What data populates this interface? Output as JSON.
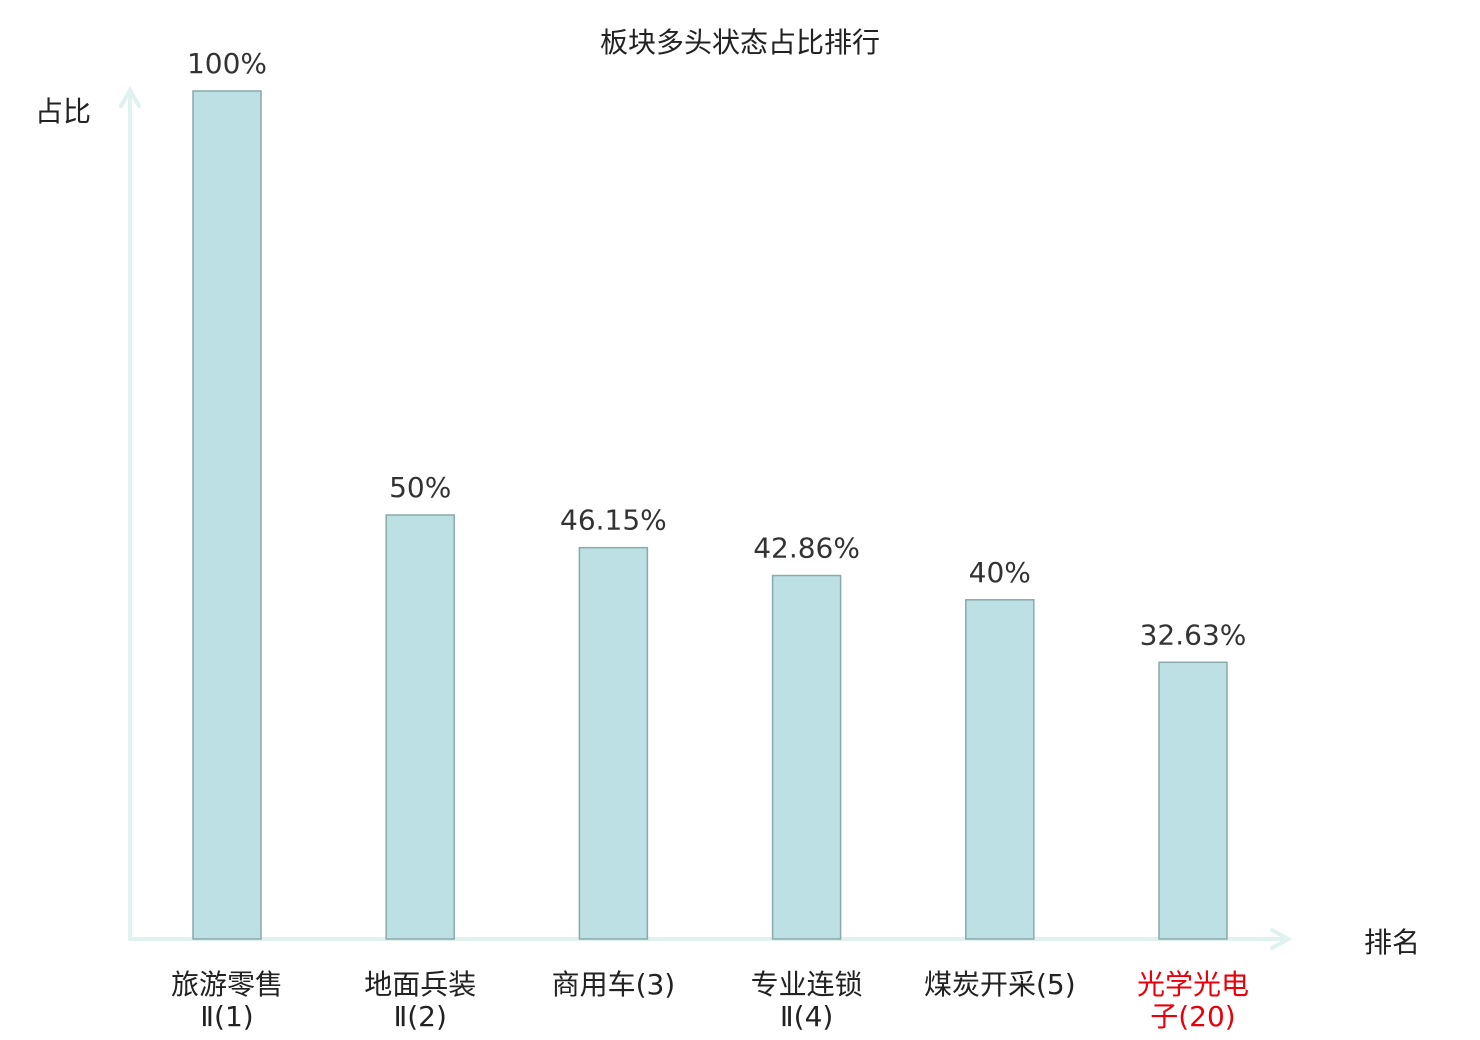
{
  "chart_data": {
    "type": "bar",
    "title": "板块多头状态占比排行",
    "xlabel": "排名",
    "ylabel": "占比",
    "ylim": [
      0,
      100
    ],
    "grid": false,
    "categories": [
      {
        "lines": [
          "旅游零售",
          "Ⅱ(1)"
        ],
        "highlight": false
      },
      {
        "lines": [
          "地面兵装",
          "Ⅱ(2)"
        ],
        "highlight": false
      },
      {
        "lines": [
          "商用车(3)"
        ],
        "highlight": false
      },
      {
        "lines": [
          "专业连锁",
          "Ⅱ(4)"
        ],
        "highlight": false
      },
      {
        "lines": [
          "煤炭开采(5)"
        ],
        "highlight": false
      },
      {
        "lines": [
          "光学光电",
          "子(20)"
        ],
        "highlight": true
      }
    ],
    "values": [
      100,
      50,
      46.15,
      42.86,
      40,
      32.63
    ],
    "data_labels": [
      "100%",
      "50%",
      "46.15%",
      "42.86%",
      "40%",
      "32.63%"
    ],
    "colors": {
      "bar_fill": "#bce0e3",
      "bar_stroke": "#8aa9ab",
      "axis": "#dff2ef",
      "text": "#222222",
      "highlight": "#e8000b"
    }
  }
}
